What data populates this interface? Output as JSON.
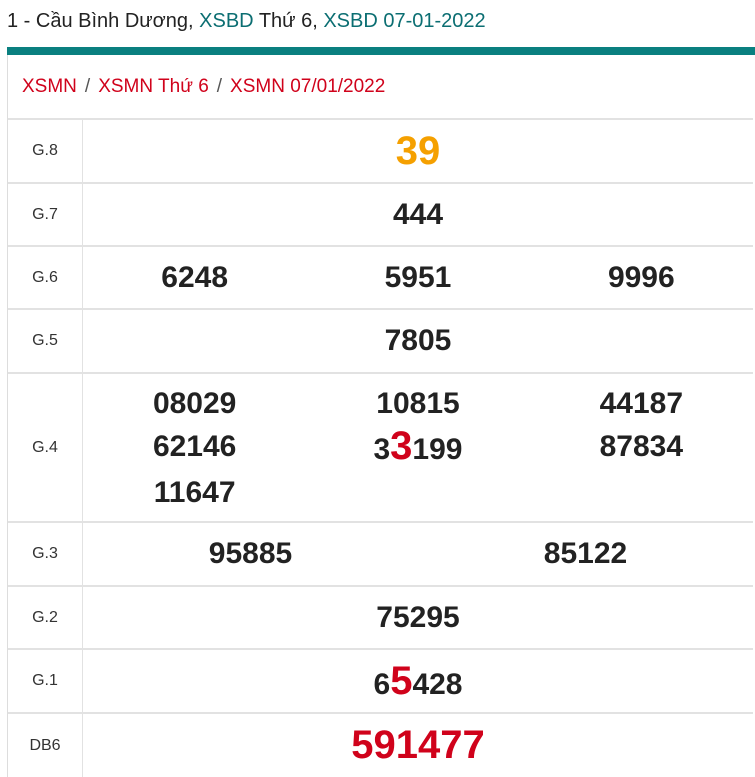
{
  "title": {
    "prefix": "1 - Cầu Bình Dương, ",
    "link1": "XSBD",
    "mid": " Thứ 6, ",
    "link2": "XSBD 07-01-2022"
  },
  "breadcrumb": [
    "XSMN",
    "XSMN Thứ 6",
    "XSMN 07/01/2022"
  ],
  "breadcrumb_sep": "/",
  "colors": {
    "accent": "#0a8080",
    "highlight": "#d0021b",
    "g8": "#f5a000"
  },
  "rows": [
    {
      "label": "G.8",
      "numbers": [
        {
          "pre": "39",
          "hl": "",
          "post": ""
        }
      ],
      "style": "g8",
      "height": 64
    },
    {
      "label": "G.7",
      "numbers": [
        {
          "pre": "444",
          "hl": "",
          "post": ""
        }
      ],
      "height": 63
    },
    {
      "label": "G.6",
      "numbers": [
        {
          "pre": "6248",
          "hl": "",
          "post": ""
        },
        {
          "pre": "5951",
          "hl": "",
          "post": ""
        },
        {
          "pre": "9996",
          "hl": "",
          "post": ""
        }
      ],
      "height": 63
    },
    {
      "label": "G.5",
      "numbers": [
        {
          "pre": "7805",
          "hl": "",
          "post": ""
        }
      ],
      "height": 64
    },
    {
      "label": "G.4",
      "grid": true,
      "numbers": [
        {
          "pre": "08029",
          "hl": "",
          "post": ""
        },
        {
          "pre": "10815",
          "hl": "",
          "post": ""
        },
        {
          "pre": "44187",
          "hl": "",
          "post": ""
        },
        {
          "pre": "62146",
          "hl": "",
          "post": ""
        },
        {
          "pre": "3",
          "hl": "3",
          "post": "199"
        },
        {
          "pre": "87834",
          "hl": "",
          "post": ""
        },
        {
          "pre": "11647",
          "hl": "",
          "post": ""
        }
      ],
      "height": 149
    },
    {
      "label": "G.3",
      "numbers": [
        {
          "pre": "95885",
          "hl": "",
          "post": ""
        },
        {
          "pre": "85122",
          "hl": "",
          "post": ""
        }
      ],
      "height": 64
    },
    {
      "label": "G.2",
      "numbers": [
        {
          "pre": "75295",
          "hl": "",
          "post": ""
        }
      ],
      "height": 63
    },
    {
      "label": "G.1",
      "numbers": [
        {
          "pre": "6",
          "hl": "5",
          "post": "428"
        }
      ],
      "height": 64
    },
    {
      "label": "DB6",
      "numbers": [
        {
          "pre": "591477",
          "hl": "",
          "post": ""
        }
      ],
      "style": "db",
      "height": 64
    }
  ]
}
